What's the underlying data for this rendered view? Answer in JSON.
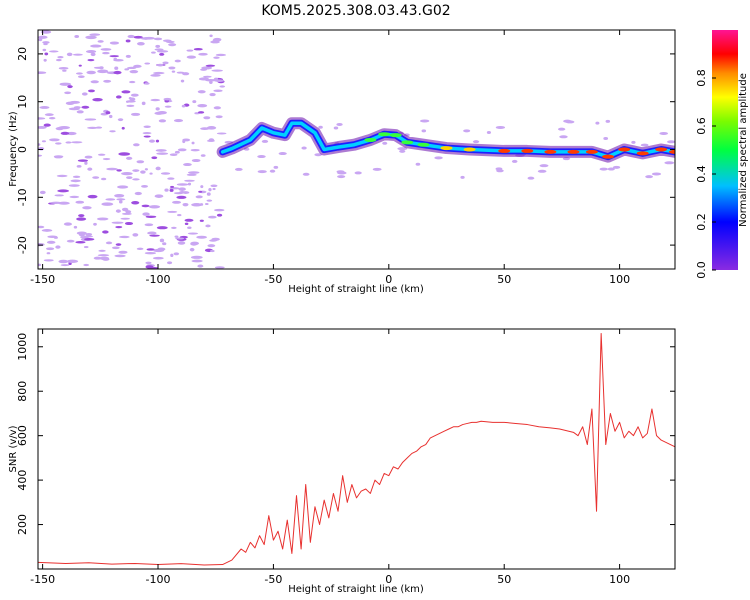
{
  "title": "KOM5.2025.308.03.43.G02",
  "colors": {
    "snr_line": "#e8312f",
    "frame": "#000000",
    "background": "#ffffff"
  },
  "chart_data": [
    {
      "type": "heatmap",
      "title": "KOM5.2025.308.03.43.G02",
      "xlabel": "Height of straight line (km)",
      "ylabel": "Frequency (Hz)",
      "xlim": [
        -152,
        124
      ],
      "ylim": [
        -25,
        25
      ],
      "xticks": [
        -150,
        -100,
        -50,
        0,
        50,
        100
      ],
      "yticks": [
        -20,
        -10,
        0,
        10,
        20
      ],
      "colorbar": {
        "label": "Normalized spectral amplitude",
        "range": [
          0,
          1
        ],
        "ticks": [
          0.0,
          0.2,
          0.4,
          0.6,
          0.8
        ],
        "colormap": "rainbow (violet to red to magenta)"
      },
      "main_feature": {
        "description": "High-amplitude ridge tracing the frequency of the strongest echo versus height",
        "x": [
          -72,
          -68,
          -60,
          -55,
          -50,
          -45,
          -42,
          -38,
          -32,
          -28,
          -22,
          -15,
          -8,
          -2,
          3,
          8,
          15,
          25,
          35,
          50,
          60,
          70,
          80,
          88,
          95,
          102,
          110,
          118,
          124
        ],
        "frequency_hz": [
          -0.5,
          0.2,
          2.0,
          4.5,
          3.5,
          3.0,
          5.5,
          5.5,
          3.5,
          0.0,
          0.5,
          1.0,
          2.0,
          3.2,
          3.0,
          1.5,
          1.0,
          0.3,
          0.0,
          -0.3,
          -0.3,
          -0.5,
          -0.5,
          -0.5,
          -1.5,
          0.0,
          -0.8,
          0.0,
          -0.5
        ]
      }
    },
    {
      "type": "line",
      "xlabel": "Height of straight line (km)",
      "ylabel": "SNR (v/v)",
      "xlim": [
        -152,
        124
      ],
      "ylim": [
        0,
        1080
      ],
      "xticks": [
        -150,
        -100,
        -50,
        0,
        50,
        100
      ],
      "yticks": [
        200,
        400,
        600,
        800,
        1000
      ],
      "series": [
        {
          "name": "SNR",
          "color": "#e8312f",
          "x": [
            -152,
            -140,
            -130,
            -120,
            -110,
            -100,
            -90,
            -80,
            -72,
            -68,
            -64,
            -62,
            -60,
            -58,
            -56,
            -54,
            -52,
            -50,
            -48,
            -46,
            -44,
            -42,
            -40,
            -38,
            -36,
            -34,
            -32,
            -30,
            -28,
            -26,
            -24,
            -22,
            -20,
            -18,
            -16,
            -14,
            -12,
            -10,
            -8,
            -6,
            -4,
            -2,
            0,
            2,
            4,
            6,
            8,
            10,
            12,
            14,
            16,
            18,
            20,
            22,
            24,
            26,
            28,
            30,
            32,
            34,
            36,
            38,
            40,
            45,
            50,
            55,
            60,
            65,
            70,
            74,
            76,
            78,
            80,
            82,
            84,
            86,
            88,
            90,
            92,
            94,
            96,
            98,
            100,
            102,
            104,
            106,
            108,
            110,
            112,
            114,
            116,
            118,
            120,
            122,
            124
          ],
          "y": [
            30,
            25,
            28,
            22,
            25,
            20,
            24,
            18,
            20,
            40,
            90,
            75,
            120,
            95,
            150,
            110,
            240,
            130,
            170,
            90,
            220,
            70,
            330,
            90,
            380,
            120,
            280,
            200,
            310,
            230,
            340,
            260,
            420,
            300,
            380,
            320,
            350,
            360,
            340,
            400,
            380,
            430,
            420,
            460,
            450,
            480,
            500,
            520,
            530,
            550,
            560,
            590,
            600,
            610,
            620,
            630,
            640,
            640,
            650,
            655,
            660,
            660,
            665,
            660,
            660,
            655,
            650,
            640,
            635,
            630,
            625,
            620,
            615,
            600,
            640,
            560,
            720,
            260,
            1060,
            560,
            700,
            620,
            660,
            590,
            620,
            600,
            640,
            590,
            610,
            720,
            600,
            580,
            570,
            560,
            550
          ]
        }
      ]
    }
  ]
}
